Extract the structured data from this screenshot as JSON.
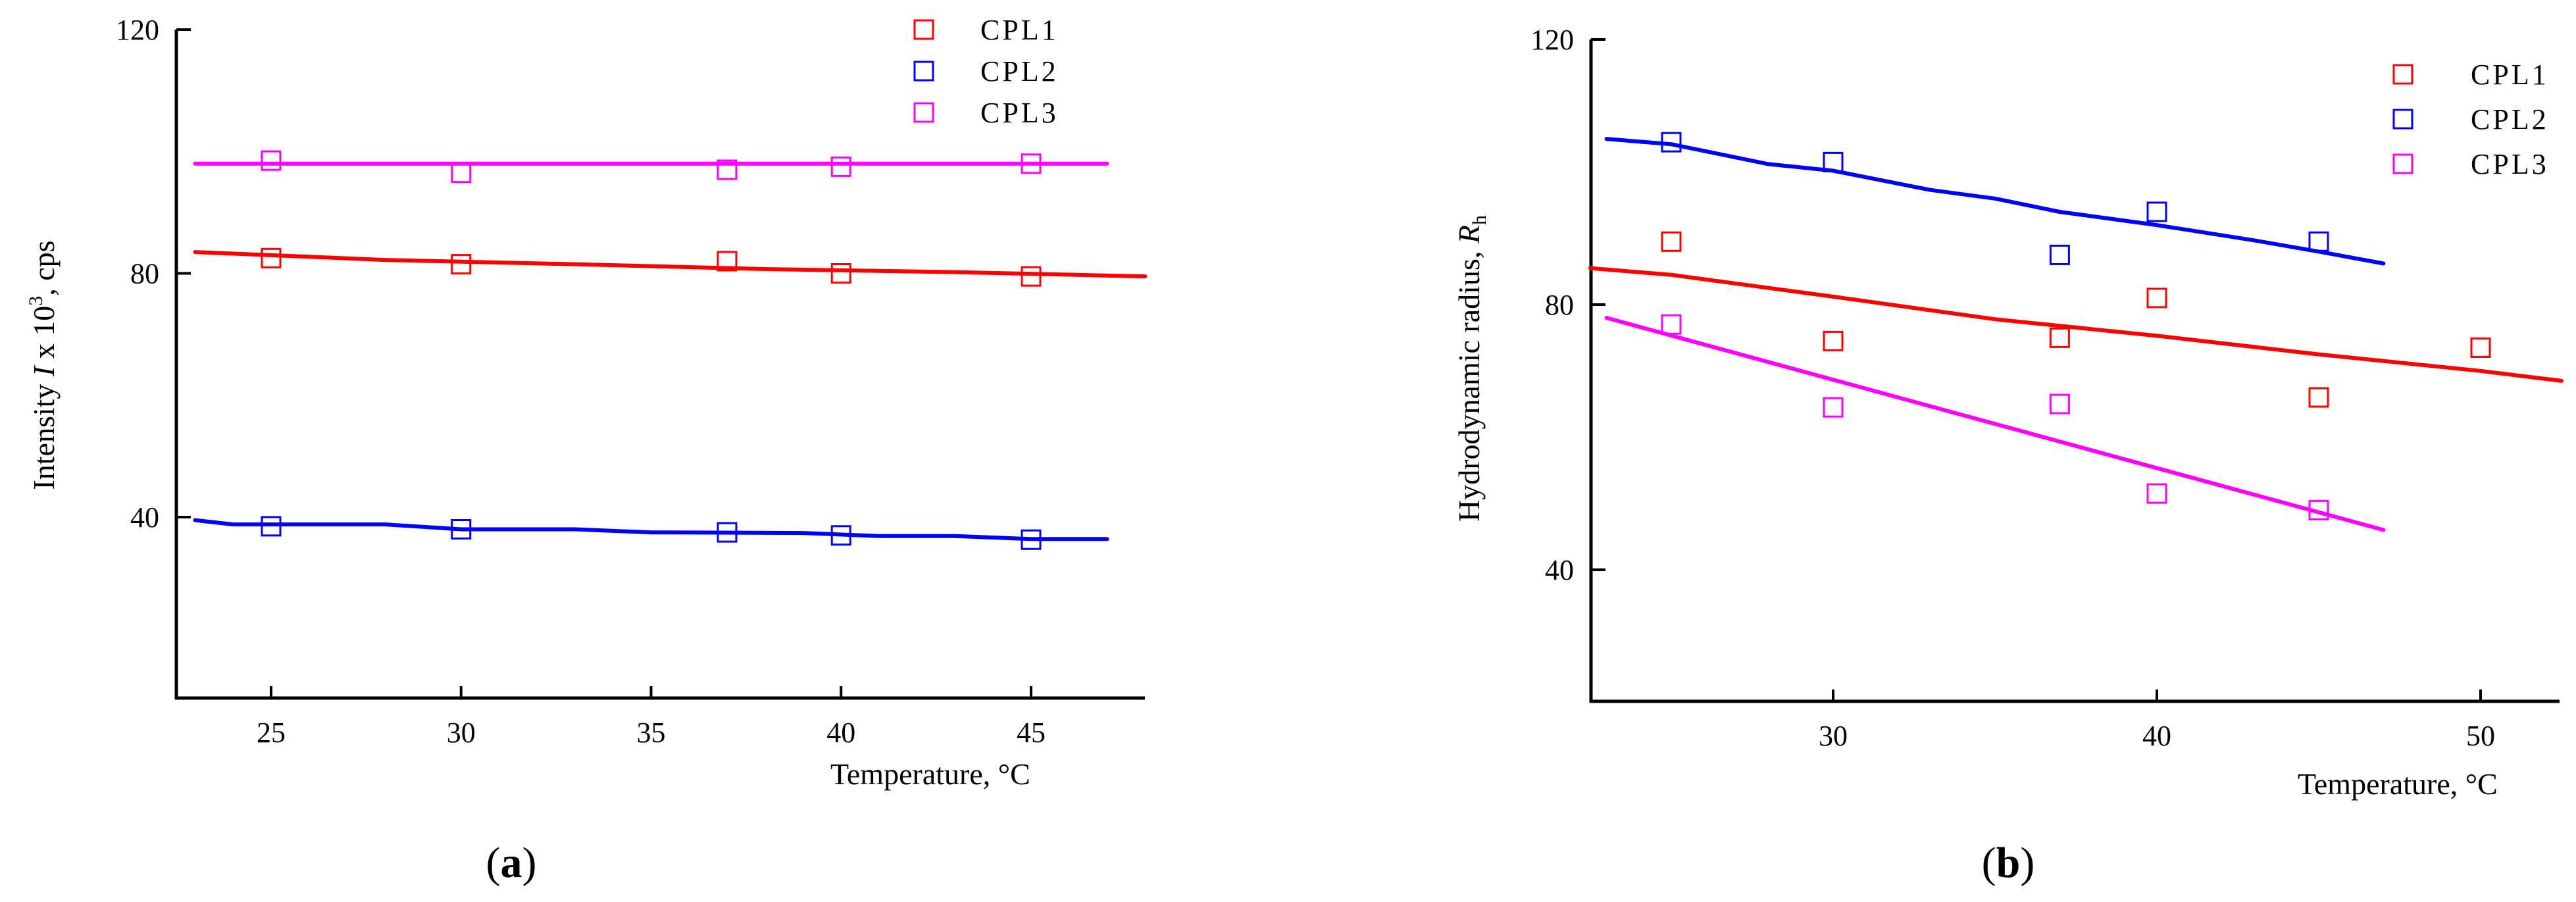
{
  "chart_data": [
    {
      "type": "scatter",
      "panel_label": "(a)",
      "xlabel": "Temperature, °C",
      "ylabel": "Intensity I x 10³, cps",
      "xlim": [
        22.5,
        48
      ],
      "ylim": [
        10,
        120
      ],
      "xticks": [
        25,
        30,
        35,
        40,
        45
      ],
      "yticks": [
        40,
        80,
        120
      ],
      "legend_position": "top-right",
      "series": [
        {
          "name": "CPL1",
          "color": "#ff0000",
          "points": [
            [
              25,
              82.5
            ],
            [
              30,
              81.5
            ],
            [
              37,
              82
            ],
            [
              40,
              80
            ],
            [
              45,
              79.5
            ]
          ],
          "fit": [
            [
              23,
              83.5
            ],
            [
              28,
              82.2
            ],
            [
              33,
              81.5
            ],
            [
              38,
              80.7
            ],
            [
              43,
              80.2
            ],
            [
              48,
              79.5
            ]
          ]
        },
        {
          "name": "CPL2",
          "color": "#0000ff",
          "points": [
            [
              25,
              38.5
            ],
            [
              30,
              38
            ],
            [
              37,
              37.5
            ],
            [
              40,
              37
            ],
            [
              45,
              36.3
            ]
          ],
          "fit": [
            [
              23,
              39.5
            ],
            [
              24,
              38.8
            ],
            [
              28,
              38.8
            ],
            [
              30,
              38
            ],
            [
              33,
              38
            ],
            [
              35,
              37.5
            ],
            [
              39,
              37.4
            ],
            [
              41,
              36.9
            ],
            [
              43,
              36.9
            ],
            [
              45,
              36.4
            ],
            [
              47,
              36.4
            ]
          ]
        },
        {
          "name": "CPL3",
          "color": "#ff00ff",
          "points": [
            [
              25,
              98.5
            ],
            [
              30,
              96.5
            ],
            [
              37,
              97
            ],
            [
              40,
              97.5
            ],
            [
              45,
              98
            ]
          ],
          "fit": [
            [
              23,
              98
            ],
            [
              47,
              98
            ]
          ]
        }
      ]
    },
    {
      "type": "scatter",
      "panel_label": "(b)",
      "xlabel": "Temperature, °C",
      "ylabel": "Hydrodynamic radius, Rh",
      "xlim": [
        22.5,
        52.5
      ],
      "ylim": [
        20,
        120
      ],
      "xticks": [
        30,
        40,
        50
      ],
      "yticks": [
        40,
        80,
        120
      ],
      "legend_position": "top-right",
      "series": [
        {
          "name": "CPL1",
          "color": "#ff0000",
          "points": [
            [
              25,
              89.5
            ],
            [
              30,
              74.5
            ],
            [
              37,
              75
            ],
            [
              40,
              81
            ],
            [
              45,
              66
            ],
            [
              50,
              73.5
            ]
          ],
          "fit": [
            [
              22.5,
              85.5
            ],
            [
              25,
              84.5
            ],
            [
              30,
              81.2
            ],
            [
              35,
              77.8
            ],
            [
              40,
              75.3
            ],
            [
              45,
              72.5
            ],
            [
              50,
              70
            ],
            [
              52.5,
              68.5
            ]
          ]
        },
        {
          "name": "CPL2",
          "color": "#0000ff",
          "points": [
            [
              25,
              104.5
            ],
            [
              30,
              101.5
            ],
            [
              37,
              87.5
            ],
            [
              40,
              94
            ],
            [
              45,
              89.5
            ]
          ],
          "fit": [
            [
              23,
              105
            ],
            [
              25,
              104.2
            ],
            [
              28,
              101.2
            ],
            [
              30,
              100.2
            ],
            [
              33,
              97.3
            ],
            [
              35,
              96
            ],
            [
              37,
              94
            ],
            [
              40,
              92
            ],
            [
              43,
              89.7
            ],
            [
              45,
              88
            ],
            [
              47,
              86.2
            ]
          ]
        },
        {
          "name": "CPL3",
          "color": "#ff00ff",
          "points": [
            [
              25,
              77
            ],
            [
              30,
              64.5
            ],
            [
              37,
              65
            ],
            [
              40,
              51.5
            ],
            [
              45,
              49
            ]
          ],
          "fit": [
            [
              23,
              78
            ],
            [
              47,
              46
            ]
          ]
        }
      ]
    }
  ]
}
